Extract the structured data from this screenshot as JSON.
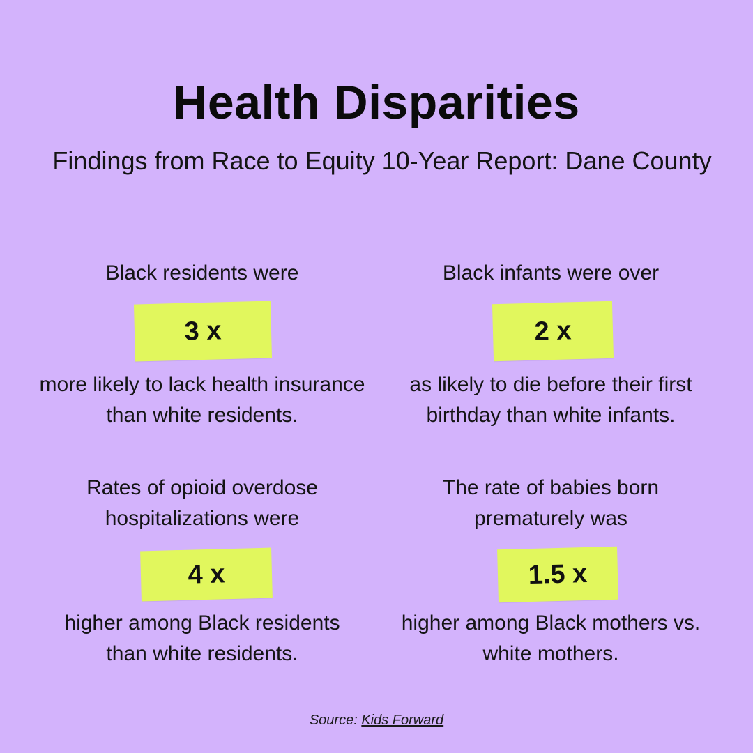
{
  "title": "Health Disparities",
  "subtitle": "Findings from Race to Equity 10-Year Report: Dane County",
  "stats": [
    {
      "intro": "Black residents were",
      "value": "3 x",
      "tail": "more likely to lack health insurance than white residents."
    },
    {
      "intro": "Black infants were over",
      "value": "2 x",
      "tail": "as likely to die before their first birthday than white infants."
    },
    {
      "intro": "Rates of opioid overdose hospitalizations were",
      "value": "4 x",
      "tail": "higher among Black residents than white residents."
    },
    {
      "intro": "The rate of babies born prematurely was",
      "value": "1.5 x",
      "tail": "higher among Black mothers vs. white mothers."
    }
  ],
  "source": {
    "label": "Source:",
    "link_text": "Kids Forward"
  },
  "colors": {
    "background": "#d3b3fc",
    "highlight": "#e1f75d",
    "text": "#111111"
  }
}
